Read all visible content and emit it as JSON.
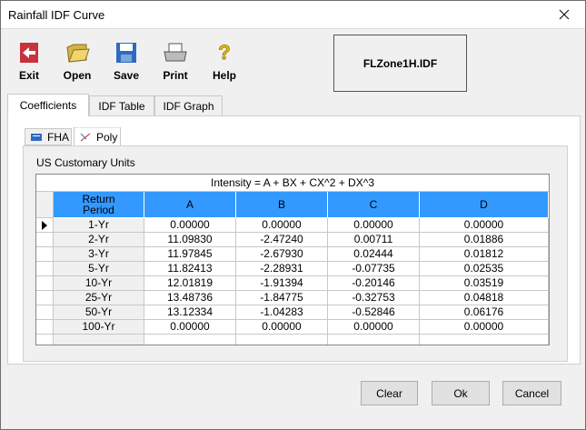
{
  "window": {
    "title": "Rainfall IDF Curve"
  },
  "toolbar": [
    {
      "label": "Exit"
    },
    {
      "label": "Open"
    },
    {
      "label": "Save"
    },
    {
      "label": "Print"
    },
    {
      "label": "Help"
    }
  ],
  "file_name": "FLZone1H.IDF",
  "tabs": [
    "Coefficients",
    "IDF Table",
    "IDF Graph"
  ],
  "sub_tabs": [
    "FHA",
    "Poly"
  ],
  "units": "US Customary Units",
  "table": {
    "caption": "Intensity = A + BX + CX^2 + DX^3",
    "columns": [
      "Return\nPeriod",
      "A",
      "B",
      "C",
      "D"
    ],
    "rows": [
      [
        "1-Yr",
        "0.00000",
        "0.00000",
        "0.00000",
        "0.00000"
      ],
      [
        "2-Yr",
        "11.09830",
        "-2.47240",
        "0.00711",
        "0.01886"
      ],
      [
        "3-Yr",
        "11.97845",
        "-2.67930",
        "0.02444",
        "0.01812"
      ],
      [
        "5-Yr",
        "11.82413",
        "-2.28931",
        "-0.07735",
        "0.02535"
      ],
      [
        "10-Yr",
        "12.01819",
        "-1.91394",
        "-0.20146",
        "0.03519"
      ],
      [
        "25-Yr",
        "13.48736",
        "-1.84775",
        "-0.32753",
        "0.04818"
      ],
      [
        "50-Yr",
        "13.12334",
        "-1.04283",
        "-0.52846",
        "0.06176"
      ],
      [
        "100-Yr",
        "0.00000",
        "0.00000",
        "0.00000",
        "0.00000"
      ]
    ]
  },
  "buttons": [
    "Clear",
    "Ok",
    "Cancel"
  ]
}
